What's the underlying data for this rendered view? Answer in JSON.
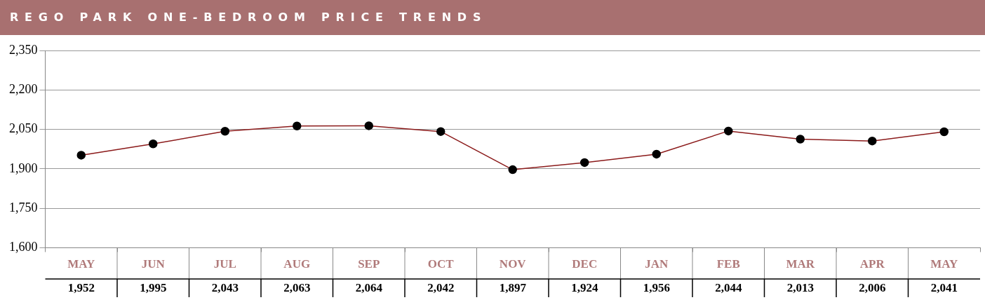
{
  "chart_data": {
    "type": "line",
    "title": "REGO PARK ONE-BEDROOM PRICE TRENDS",
    "categories": [
      "MAY",
      "JUN",
      "JUL",
      "AUG",
      "SEP",
      "OCT",
      "NOV",
      "DEC",
      "JAN",
      "FEB",
      "MAR",
      "APR",
      "MAY"
    ],
    "series": [
      {
        "color": "#8b1a1a",
        "values": [
          1952,
          1995,
          2043,
          2063,
          2064,
          2042,
          1897,
          1924,
          1956,
          2044,
          2013,
          2006,
          2041
        ],
        "value_labels": [
          "1,952",
          "1,995",
          "2,043",
          "2,063",
          "2,064",
          "2,042",
          "1,897",
          "1,924",
          "1,956",
          "2,044",
          "2,013",
          "2,006",
          "2,041"
        ]
      }
    ],
    "ylim": [
      1600,
      2350
    ],
    "yticks": [
      {
        "value": 1600,
        "label": "1,600"
      },
      {
        "value": 1750,
        "label": "1,750"
      },
      {
        "value": 1900,
        "label": "1,900"
      },
      {
        "value": 2050,
        "label": "2,050"
      },
      {
        "value": 2200,
        "label": "2,200"
      },
      {
        "value": 2350,
        "label": "2,350"
      }
    ],
    "grid": "y",
    "marker": "circle",
    "line_style": "solid",
    "legend": false
  }
}
